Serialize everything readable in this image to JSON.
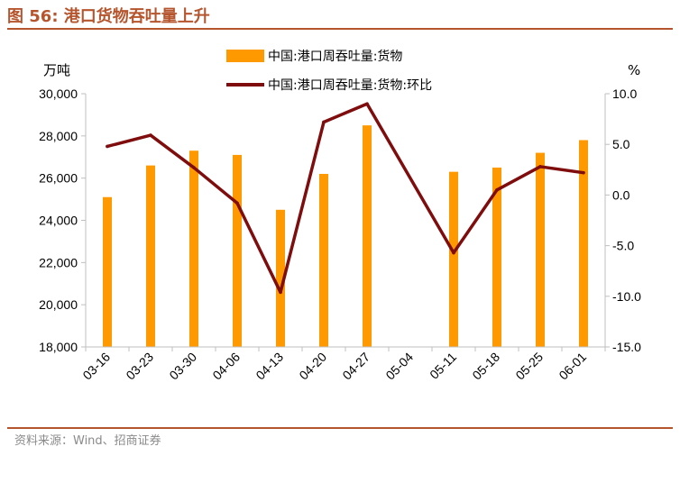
{
  "title": "图 56:  港口货物吞吐量上升",
  "source": "资料来源：Wind、招商证券",
  "colors": {
    "accent": "#b5552e",
    "bar": "#ff9900",
    "line": "#7f0d0d",
    "axis": "#bfbfbf"
  },
  "chart_data": {
    "type": "bar",
    "categories": [
      "03-16",
      "03-23",
      "03-30",
      "04-06",
      "04-13",
      "04-20",
      "04-27",
      "05-04",
      "05-11",
      "05-18",
      "05-25",
      "06-01"
    ],
    "series": [
      {
        "name": "中国:港口周吞吐量:货物",
        "type": "bar",
        "axis": "left",
        "values": [
          25100,
          26600,
          27300,
          27100,
          24500,
          26200,
          28500,
          null,
          26300,
          26500,
          27200,
          27800
        ]
      },
      {
        "name": "中国:港口周吞吐量:货物:环比",
        "type": "line",
        "axis": "right",
        "values": [
          4.8,
          5.9,
          2.7,
          -0.8,
          -9.6,
          7.2,
          9.0,
          null,
          -5.7,
          0.5,
          2.8,
          2.2
        ]
      }
    ],
    "ylabel_left": "万吨",
    "ylabel_right": "%",
    "ylim_left": [
      18000,
      30000
    ],
    "ylim_right": [
      -15,
      10
    ],
    "yticks_left": [
      "30,000",
      "28,000",
      "26,000",
      "24,000",
      "22,000",
      "20,000",
      "18,000"
    ],
    "yticks_right": [
      "10.0",
      "5.0",
      "0.0",
      "-5.0",
      "-10.0",
      "-15.0"
    ],
    "legend_position": "top-center"
  }
}
